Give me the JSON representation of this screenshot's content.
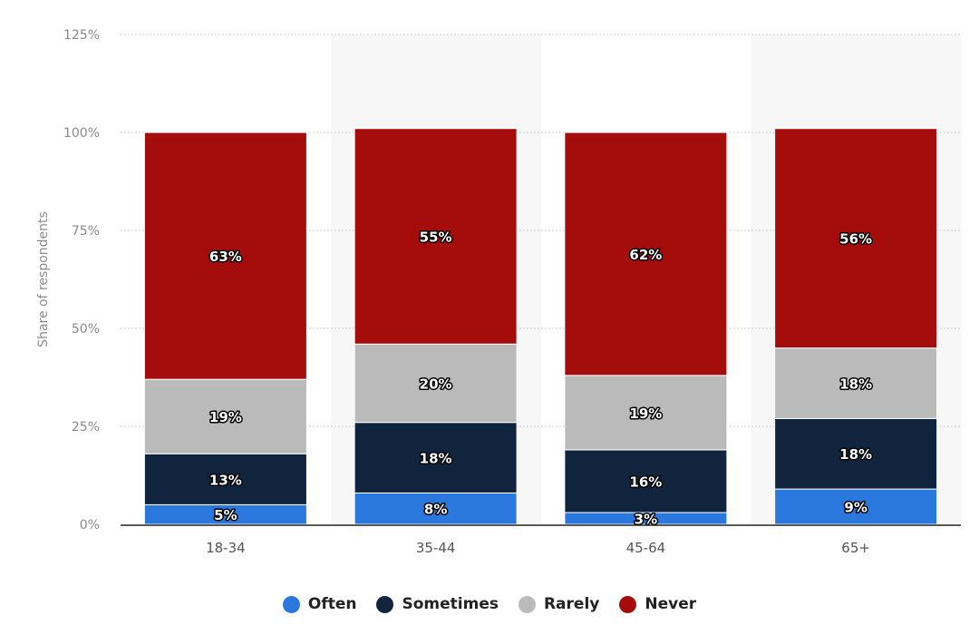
{
  "chart_data": {
    "type": "bar",
    "stacked": true,
    "title": "",
    "xlabel": "",
    "ylabel": "Share of respondents",
    "ylim": [
      0,
      125
    ],
    "yticks": [
      0,
      25,
      50,
      75,
      100,
      125
    ],
    "ytick_labels": [
      "0%",
      "25%",
      "50%",
      "75%",
      "100%",
      "125%"
    ],
    "categories": [
      "18-34",
      "35-44",
      "45-64",
      "65+"
    ],
    "series": [
      {
        "name": "Often",
        "color": "#2a78de",
        "values": [
          5,
          8,
          3,
          9
        ],
        "labels": [
          "5%",
          "8%",
          "3%",
          "9%"
        ]
      },
      {
        "name": "Sometimes",
        "color": "#10253d",
        "values": [
          13,
          18,
          16,
          18
        ],
        "labels": [
          "13%",
          "18%",
          "16%",
          "18%"
        ]
      },
      {
        "name": "Rarely",
        "color": "#bababa",
        "values": [
          19,
          20,
          19,
          18
        ],
        "labels": [
          "19%",
          "20%",
          "19%",
          "18%"
        ]
      },
      {
        "name": "Never",
        "color": "#a50d0d",
        "values": [
          63,
          55,
          62,
          56
        ],
        "labels": [
          "63%",
          "55%",
          "62%",
          "56%"
        ]
      }
    ],
    "legend_position": "bottom-center",
    "grid": true
  }
}
